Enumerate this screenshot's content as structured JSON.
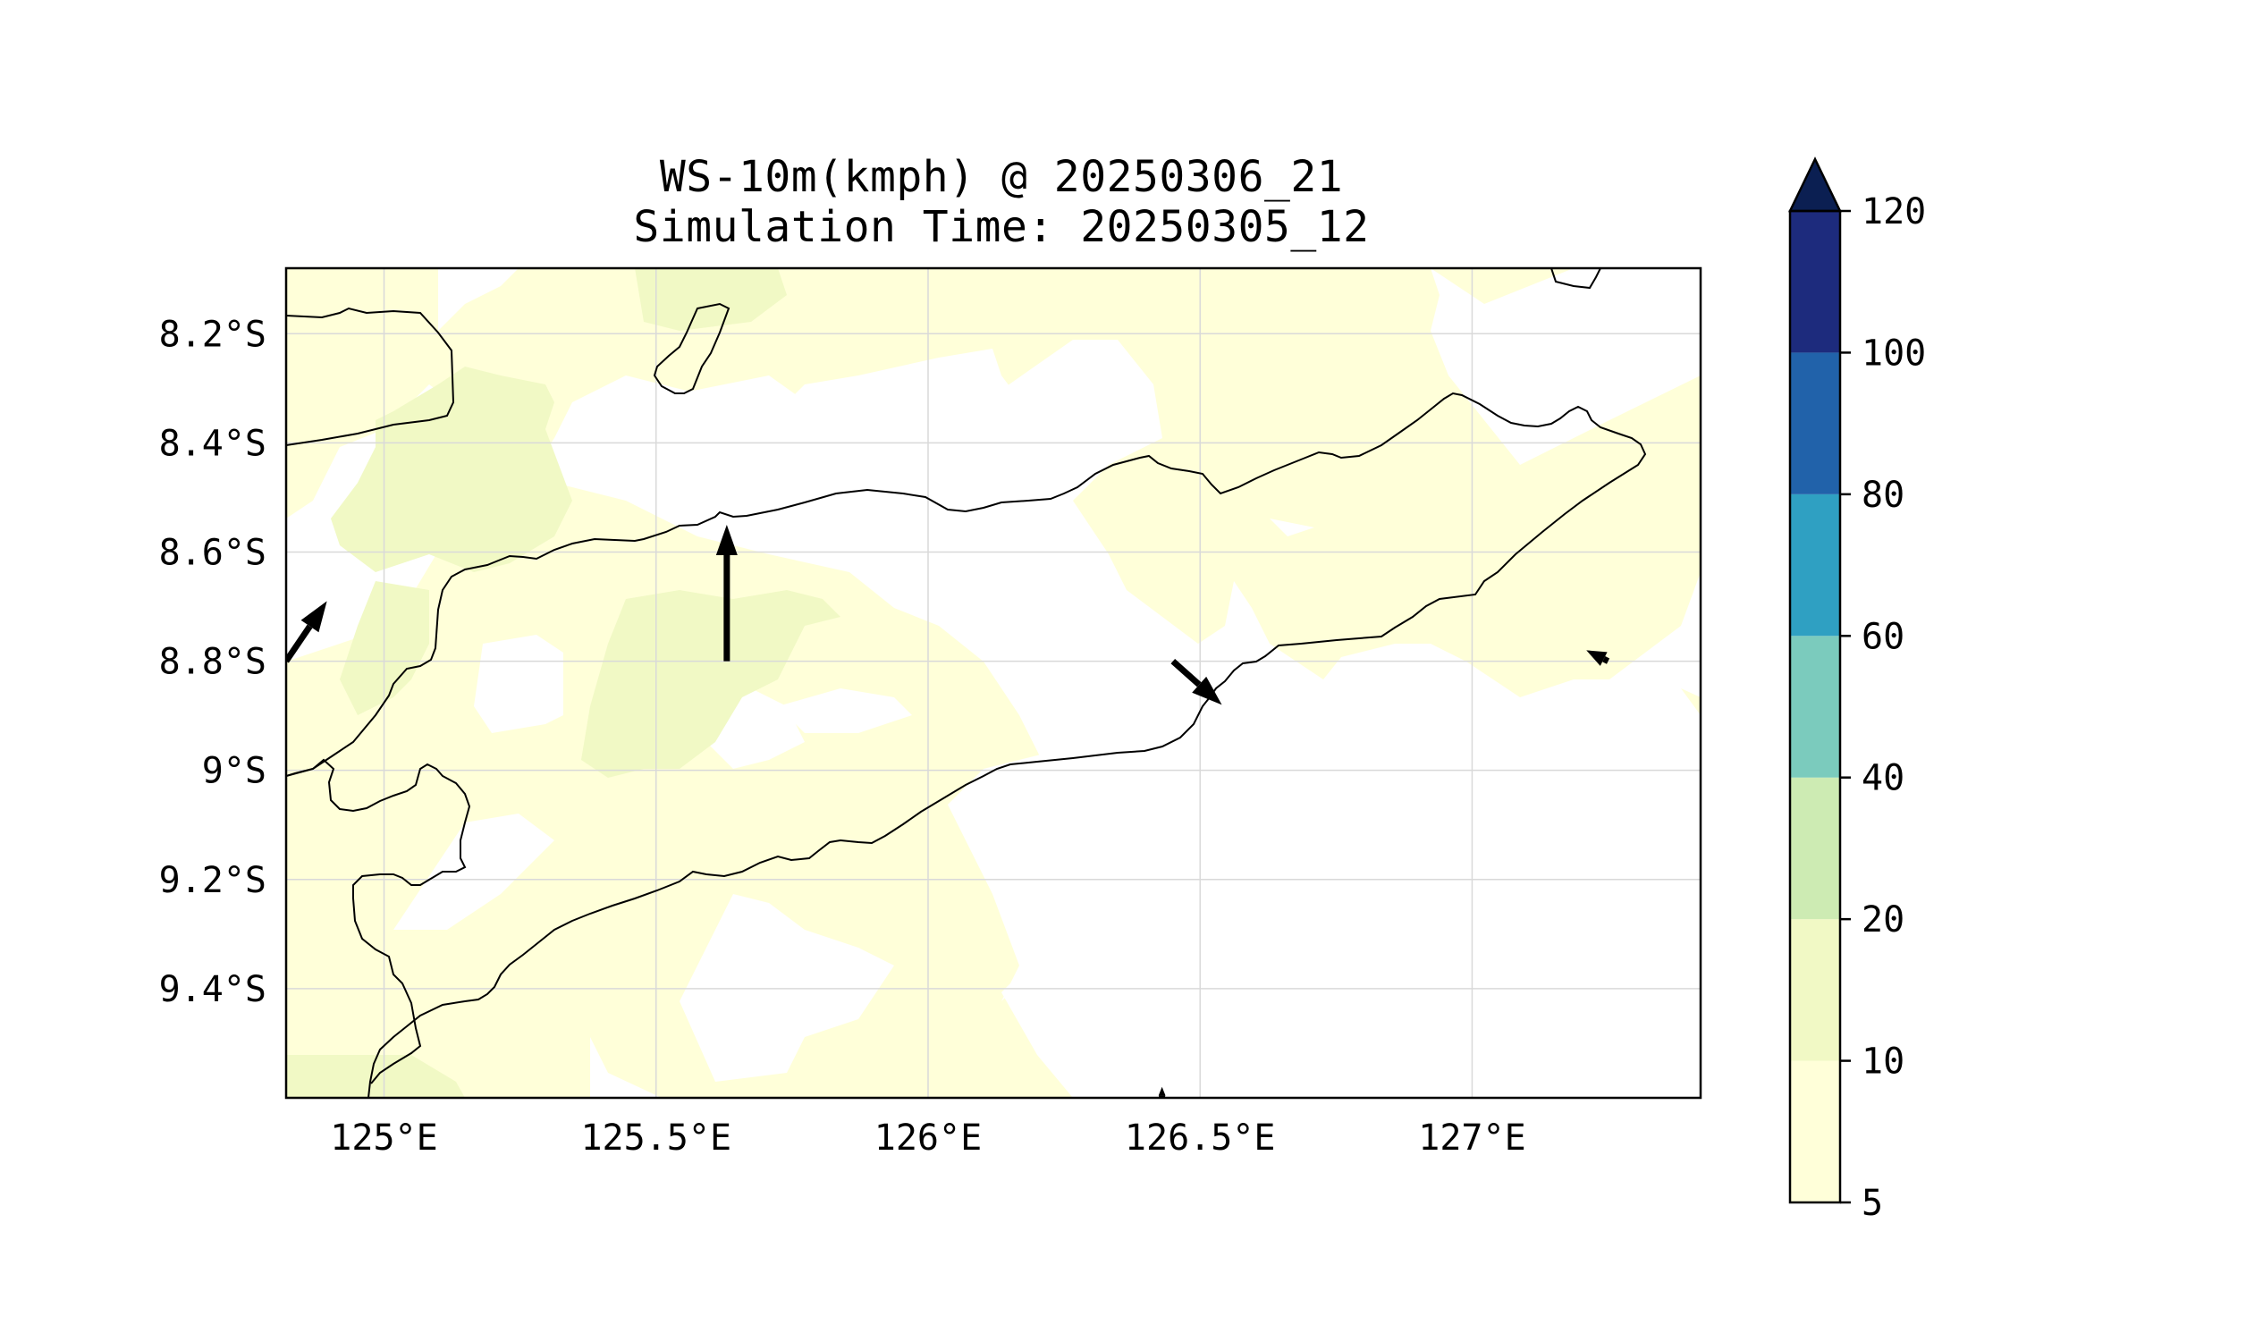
{
  "map": {
    "title_line1": "WS-10m(kmph) @ 20250306_21",
    "title_line2": "Simulation Time: 20250305_12",
    "lon_ticks": [
      {
        "lon": 125.0,
        "label": "125°E"
      },
      {
        "lon": 125.5,
        "label": "125.5°E"
      },
      {
        "lon": 126.0,
        "label": "126°E"
      },
      {
        "lon": 126.5,
        "label": "126.5°E"
      },
      {
        "lon": 127.0,
        "label": "127°E"
      }
    ],
    "lat_ticks": [
      {
        "lat": -8.2,
        "label": "8.2°S"
      },
      {
        "lat": -8.4,
        "label": "8.4°S"
      },
      {
        "lat": -8.6,
        "label": "8.6°S"
      },
      {
        "lat": -8.8,
        "label": "8.8°S"
      },
      {
        "lat": -9.0,
        "label": "9°S"
      },
      {
        "lat": -9.2,
        "label": "9.2°S"
      },
      {
        "lat": -9.4,
        "label": "9.4°S"
      }
    ],
    "extent": {
      "lon_min": 124.82,
      "lon_max": 127.42,
      "lat_min": -9.6,
      "lat_max": -8.08
    },
    "gridlines": true,
    "colorbar": {
      "position": "right",
      "extend": "max",
      "levels": [
        {
          "value": 5,
          "label": "5",
          "color": "#ffffd9"
        },
        {
          "value": 10,
          "label": "10",
          "color": "#f1f9c5"
        },
        {
          "value": 20,
          "label": "20",
          "color": "#cdebb3"
        },
        {
          "value": 40,
          "label": "40",
          "color": "#7bcbbd"
        },
        {
          "value": 60,
          "label": "60",
          "color": "#2fa0c2"
        },
        {
          "value": 80,
          "label": "80",
          "color": "#2162aa"
        },
        {
          "value": 100,
          "label": "100",
          "color": "#1d2b7d"
        },
        {
          "value": 120,
          "label": "120",
          "color": "#0b1f52"
        }
      ]
    },
    "wind_arrows": [
      {
        "lon": 124.82,
        "lat": -8.8,
        "dlon": 0.075,
        "dlat": 0.11
      },
      {
        "lon": 125.63,
        "lat": -8.8,
        "dlon": 0.0,
        "dlat": 0.25
      },
      {
        "lon": 126.45,
        "lat": -8.8,
        "dlon": 0.09,
        "dlat": -0.08
      },
      {
        "lon": 127.25,
        "lat": -8.8,
        "dlon": -0.04,
        "dlat": 0.02
      },
      {
        "lon": 126.43,
        "lat": -9.6,
        "dlon": 0.0,
        "dlat": 0.02
      }
    ]
  }
}
